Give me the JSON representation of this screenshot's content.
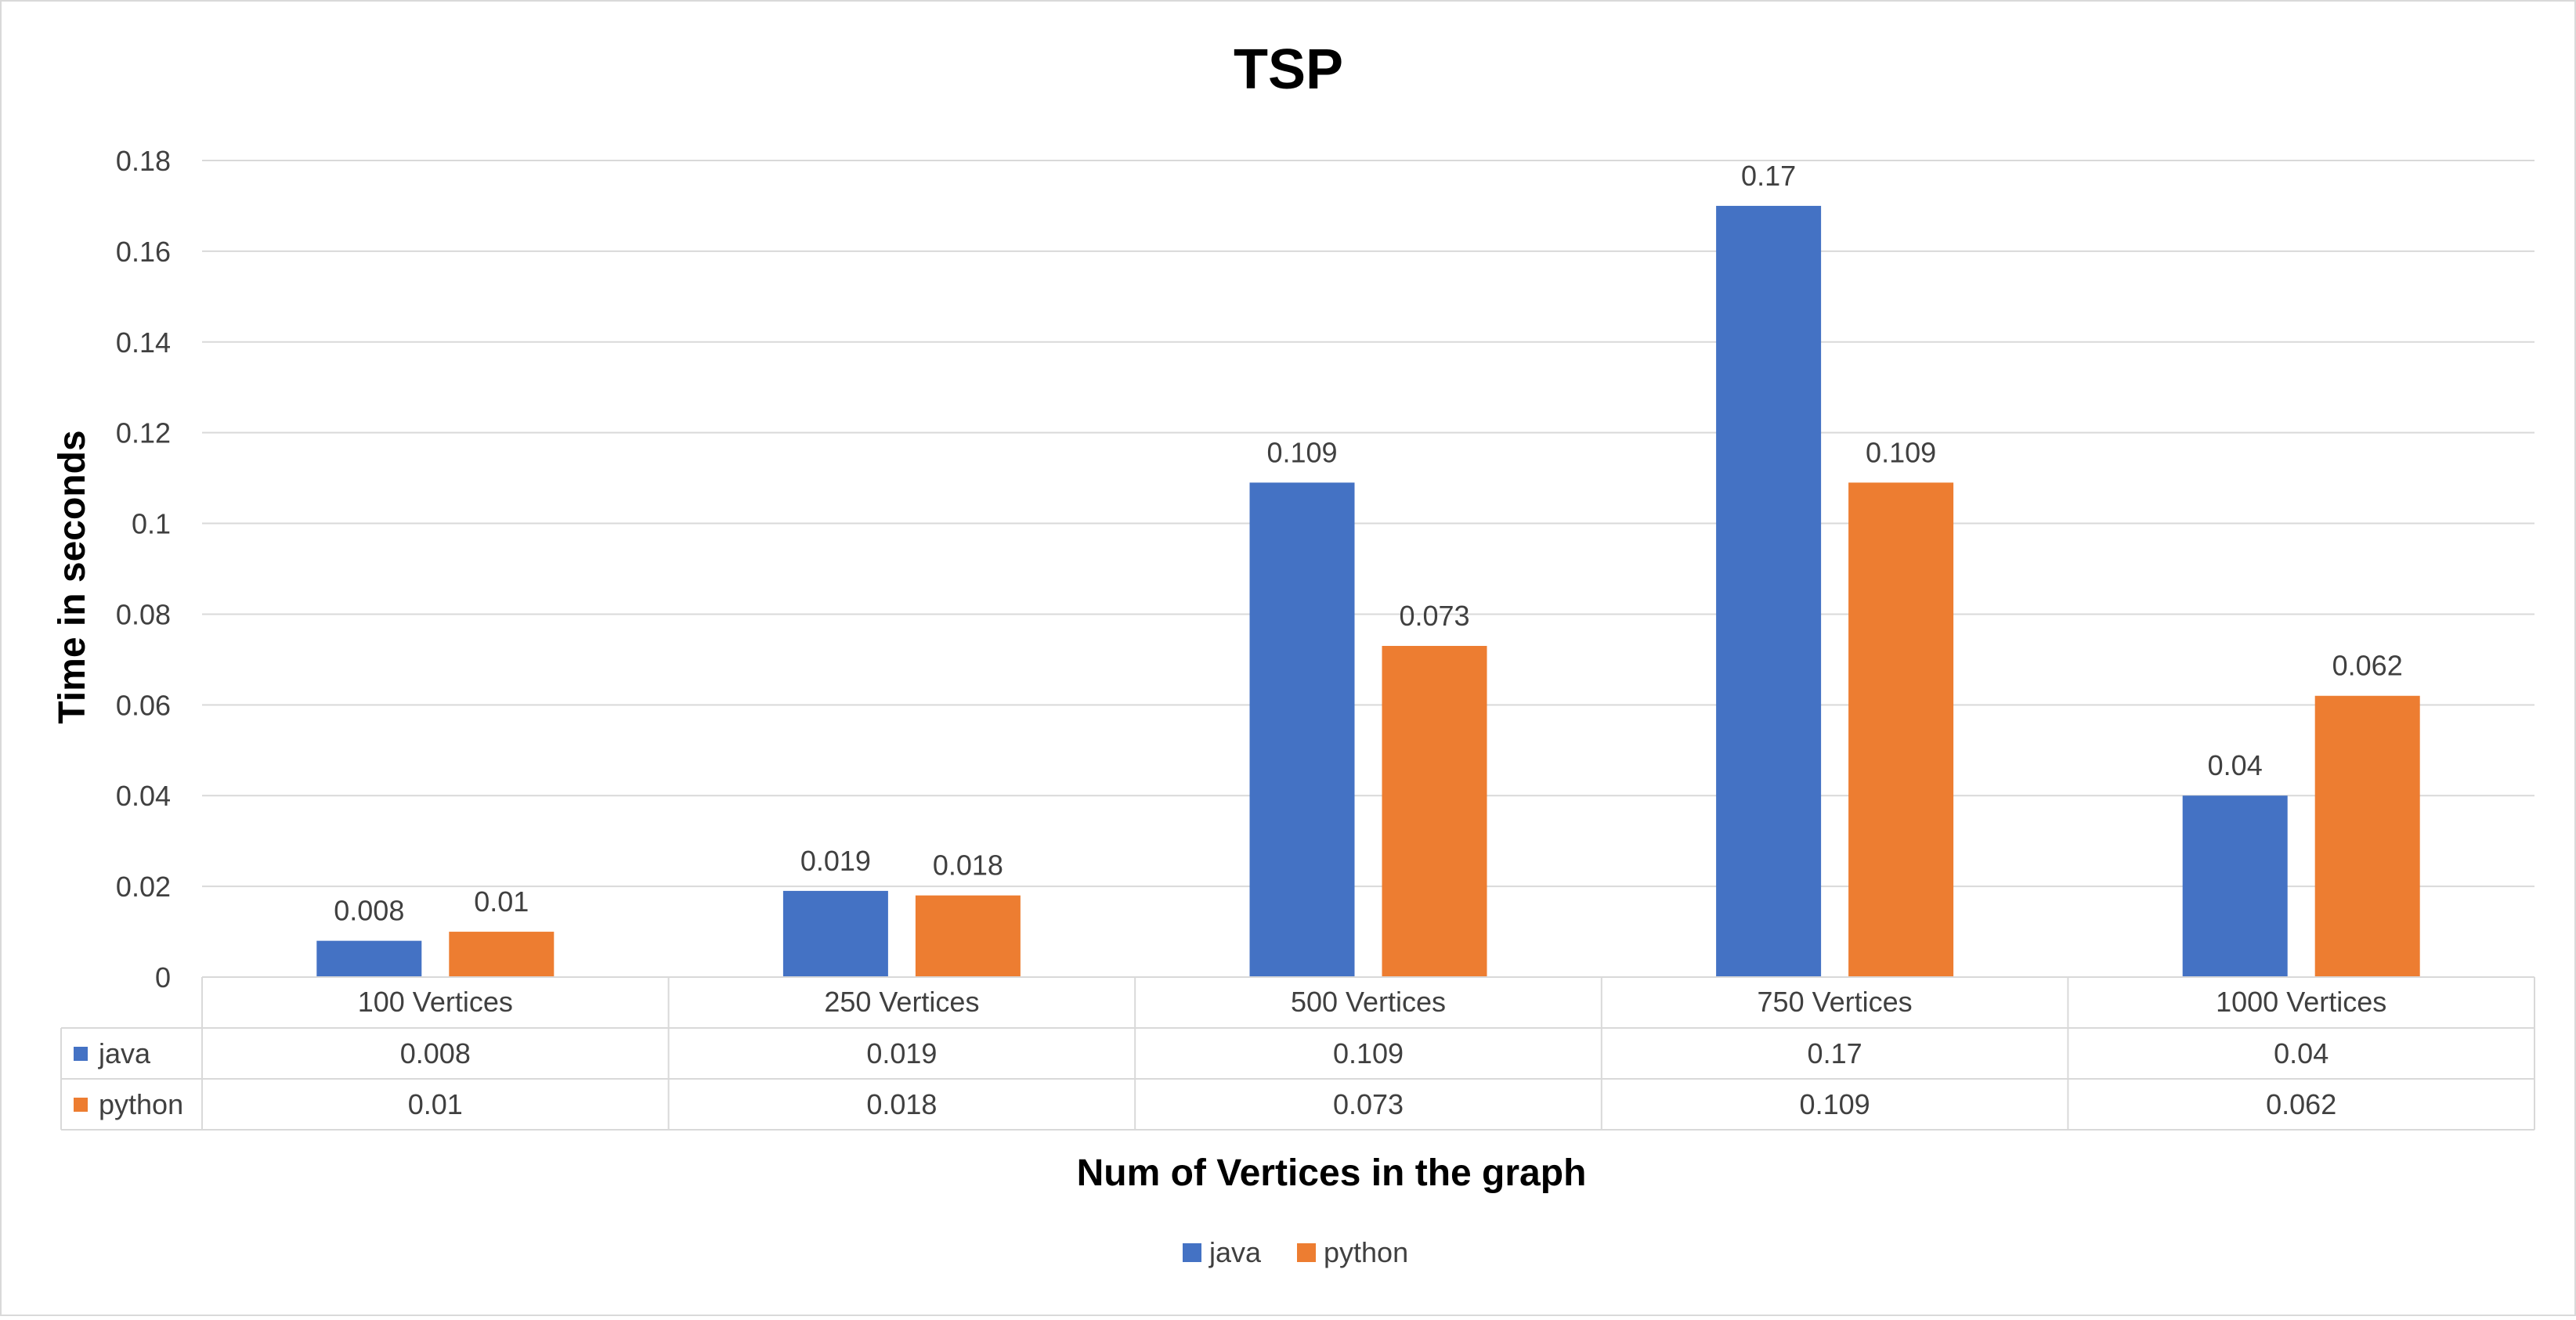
{
  "chart_data": {
    "type": "bar",
    "title": "TSP",
    "xlabel": "Num of Vertices in the graph",
    "ylabel": "Time in seconds",
    "categories": [
      "100 Vertices",
      "250 Vertices",
      "500 Vertices",
      "750 Vertices",
      "1000 Vertices"
    ],
    "series": [
      {
        "name": "java",
        "color": "#4472C4",
        "values": [
          0.008,
          0.019,
          0.109,
          0.17,
          0.04
        ],
        "labels": [
          "0.008",
          "0.019",
          "0.109",
          "0.17",
          "0.04"
        ]
      },
      {
        "name": "python",
        "color": "#ED7D31",
        "values": [
          0.01,
          0.018,
          0.073,
          0.109,
          0.062
        ],
        "labels": [
          "0.01",
          "0.018",
          "0.073",
          "0.109",
          "0.062"
        ]
      }
    ],
    "ylim": [
      0,
      0.18
    ],
    "yticks": [
      "0",
      "0.02",
      "0.04",
      "0.06",
      "0.08",
      "0.1",
      "0.12",
      "0.14",
      "0.16",
      "0.18"
    ],
    "grid": true,
    "legend": "bottom",
    "data_table": true
  }
}
